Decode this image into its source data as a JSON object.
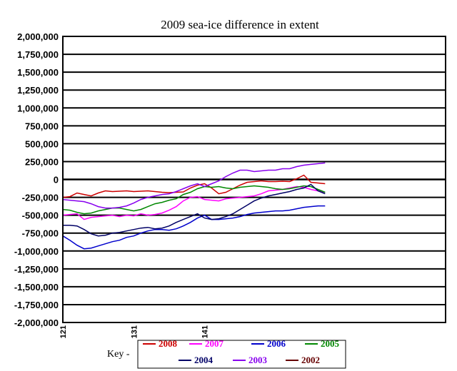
{
  "chart_data": {
    "type": "line",
    "title": "2009 sea-ice difference in extent",
    "xlabel": "",
    "ylabel": "",
    "ylim": [
      -2000000,
      2000000
    ],
    "yticks": [
      2000000,
      1750000,
      1500000,
      1250000,
      1000000,
      750000,
      500000,
      250000,
      0,
      -250000,
      -500000,
      -750000,
      -1000000,
      -1250000,
      -1500000,
      -1750000,
      -2000000
    ],
    "ytick_labels": [
      "2,000,000",
      "1,750,000",
      "1,500,000",
      "1,250,000",
      "1,000,000",
      "750,000",
      "500,000",
      "250,000",
      "0",
      "-250,000",
      "-500,000",
      "-750,000",
      "-1,000,000",
      "-1,250,000",
      "-1,500,000",
      "-1,750,000",
      "-2,000,000"
    ],
    "xlim": [
      121,
      175
    ],
    "xtick_labels": [
      "121",
      "131",
      "141"
    ],
    "xtick_values": [
      121,
      131,
      141
    ],
    "grid": "horizontal",
    "legend_title": "Key -",
    "legend_position": "bottom",
    "series": [
      {
        "name": "2008",
        "color": "#cc0000",
        "x": [
          121,
          122,
          123,
          124,
          125,
          126,
          127,
          128,
          129,
          130,
          131,
          132,
          133,
          134,
          135,
          136,
          137,
          138,
          139,
          140,
          141,
          142,
          143,
          144,
          145,
          146,
          147,
          148,
          149,
          150,
          151,
          152,
          153,
          154,
          155,
          156,
          157,
          158
        ],
        "values": [
          -250000,
          -240000,
          -190000,
          -210000,
          -230000,
          -190000,
          -160000,
          -170000,
          -165000,
          -160000,
          -170000,
          -165000,
          -160000,
          -170000,
          -180000,
          -185000,
          -180000,
          -175000,
          -120000,
          -80000,
          -60000,
          -120000,
          -200000,
          -180000,
          -130000,
          -80000,
          -40000,
          -30000,
          -20000,
          -30000,
          -30000,
          -25000,
          -30000,
          10000,
          60000,
          -40000,
          -50000,
          -60000
        ]
      },
      {
        "name": "2007",
        "color": "#ff00ff",
        "x": [
          121,
          122,
          123,
          124,
          125,
          126,
          127,
          128,
          129,
          130,
          131,
          132,
          133,
          134,
          135,
          136,
          137,
          138,
          139,
          140,
          141,
          142,
          143,
          144,
          145,
          146,
          147,
          148,
          149,
          150,
          151,
          152,
          153,
          154,
          155,
          156,
          157,
          158
        ],
        "values": [
          -500000,
          -490000,
          -480000,
          -560000,
          -530000,
          -520000,
          -510000,
          -500000,
          -520000,
          -500000,
          -510000,
          -480000,
          -500000,
          -490000,
          -470000,
          -430000,
          -380000,
          -300000,
          -250000,
          -240000,
          -280000,
          -290000,
          -300000,
          -270000,
          -260000,
          -250000,
          -240000,
          -230000,
          -200000,
          -160000,
          -150000,
          -140000,
          -120000,
          -100000,
          -110000,
          -140000,
          -160000,
          -180000
        ]
      },
      {
        "name": "2006",
        "color": "#0000cc",
        "x": [
          121,
          122,
          123,
          124,
          125,
          126,
          127,
          128,
          129,
          130,
          131,
          132,
          133,
          134,
          135,
          136,
          137,
          138,
          139,
          140,
          141,
          142,
          143,
          144,
          145,
          146,
          147,
          148,
          149,
          150,
          151,
          152,
          153,
          154,
          155,
          156,
          157,
          158
        ],
        "values": [
          -790000,
          -850000,
          -920000,
          -970000,
          -960000,
          -930000,
          -900000,
          -870000,
          -850000,
          -810000,
          -790000,
          -750000,
          -720000,
          -700000,
          -700000,
          -710000,
          -690000,
          -650000,
          -600000,
          -540000,
          -500000,
          -560000,
          -560000,
          -550000,
          -540000,
          -520000,
          -490000,
          -470000,
          -460000,
          -450000,
          -440000,
          -440000,
          -430000,
          -410000,
          -390000,
          -380000,
          -370000,
          -370000
        ]
      },
      {
        "name": "2005",
        "color": "#008800",
        "x": [
          121,
          122,
          123,
          124,
          125,
          126,
          127,
          128,
          129,
          130,
          131,
          132,
          133,
          134,
          135,
          136,
          137,
          138,
          139,
          140,
          141,
          142,
          143,
          144,
          145,
          146,
          147,
          148,
          149,
          150,
          151,
          152,
          153,
          154,
          155,
          156,
          157,
          158
        ],
        "values": [
          -420000,
          -430000,
          -460000,
          -480000,
          -470000,
          -440000,
          -420000,
          -400000,
          -400000,
          -420000,
          -440000,
          -420000,
          -380000,
          -340000,
          -320000,
          -290000,
          -270000,
          -210000,
          -180000,
          -130000,
          -100000,
          -110000,
          -100000,
          -120000,
          -130000,
          -110000,
          -100000,
          -90000,
          -100000,
          -110000,
          -130000,
          -140000,
          -130000,
          -110000,
          -90000,
          -100000,
          -140000,
          -180000
        ]
      },
      {
        "name": "2004",
        "color": "#000066",
        "x": [
          121,
          122,
          123,
          124,
          125,
          126,
          127,
          128,
          129,
          130,
          131,
          132,
          133,
          134,
          135,
          136,
          137,
          138,
          139,
          140,
          141,
          142,
          143,
          144,
          145,
          146,
          147,
          148,
          149,
          150,
          151,
          152,
          153,
          154,
          155,
          156,
          157,
          158
        ],
        "values": [
          -640000,
          -640000,
          -650000,
          -700000,
          -760000,
          -790000,
          -780000,
          -750000,
          -740000,
          -720000,
          -700000,
          -680000,
          -670000,
          -690000,
          -680000,
          -650000,
          -600000,
          -560000,
          -520000,
          -480000,
          -540000,
          -560000,
          -550000,
          -520000,
          -480000,
          -420000,
          -360000,
          -300000,
          -260000,
          -230000,
          -210000,
          -190000,
          -170000,
          -140000,
          -120000,
          -70000,
          -160000,
          -200000
        ]
      },
      {
        "name": "2003",
        "color": "#8800ee",
        "x": [
          121,
          122,
          123,
          124,
          125,
          126,
          127,
          128,
          129,
          130,
          131,
          132,
          133,
          134,
          135,
          136,
          137,
          138,
          139,
          140,
          141,
          142,
          143,
          144,
          145,
          146,
          147,
          148,
          149,
          150,
          151,
          152,
          153,
          154,
          155,
          156,
          157,
          158
        ],
        "values": [
          -280000,
          -290000,
          -300000,
          -310000,
          -340000,
          -380000,
          -400000,
          -400000,
          -390000,
          -370000,
          -330000,
          -280000,
          -250000,
          -230000,
          -210000,
          -200000,
          -170000,
          -130000,
          -90000,
          -60000,
          -100000,
          -60000,
          -20000,
          40000,
          90000,
          130000,
          130000,
          110000,
          120000,
          130000,
          130000,
          150000,
          150000,
          180000,
          200000,
          210000,
          220000,
          230000
        ]
      },
      {
        "name": "2002",
        "color": "#660000",
        "x": [],
        "values": []
      }
    ]
  }
}
